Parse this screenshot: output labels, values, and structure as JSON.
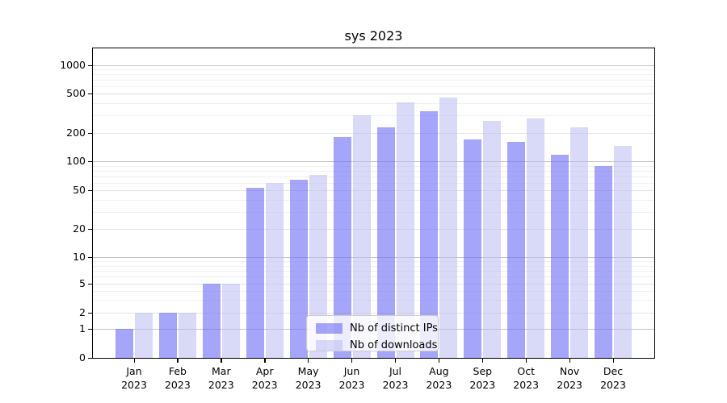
{
  "chart_data": {
    "type": "bar",
    "title": "sys 2023",
    "categories": [
      "Jan",
      "Feb",
      "Mar",
      "Apr",
      "May",
      "Jun",
      "Jul",
      "Aug",
      "Sep",
      "Oct",
      "Nov",
      "Dec"
    ],
    "year": "2023",
    "series": [
      {
        "name": "Nb of distinct IPs",
        "color": "rgba(110,110,245,0.62)",
        "values": [
          1,
          2,
          5,
          53,
          64,
          180,
          230,
          330,
          170,
          160,
          118,
          90
        ]
      },
      {
        "name": "Nb of downloads",
        "color": "rgba(185,185,242,0.55)",
        "values": [
          2,
          2,
          5,
          60,
          72,
          300,
          410,
          460,
          265,
          280,
          230,
          145
        ]
      }
    ],
    "yscale": "symlog",
    "ylim": [
      0,
      1500
    ],
    "yticks": [
      0,
      1,
      2,
      5,
      10,
      20,
      50,
      100,
      200,
      500,
      1000
    ],
    "ytick_labels": [
      "0",
      "1",
      "2",
      "5",
      "10",
      "20",
      "50",
      "100",
      "200",
      "500",
      "1000"
    ],
    "yticks_minor": [
      3,
      4,
      6,
      7,
      8,
      9,
      30,
      40,
      60,
      70,
      80,
      90,
      300,
      400,
      600,
      700,
      800,
      900
    ],
    "grid": "horizontal major+minor",
    "legend_position": "lower center inside",
    "xlabel": "",
    "ylabel": ""
  },
  "colors": {
    "ips_bar_effective": "#a5a5f6",
    "downloads_bar_effective": "#d9d9f8",
    "grid_power10": "#c3c3c3",
    "grid_major": "#e4e4e4",
    "grid_minor": "#f1f1f1",
    "spine": "#000000",
    "legend_border": "#cccccc"
  }
}
